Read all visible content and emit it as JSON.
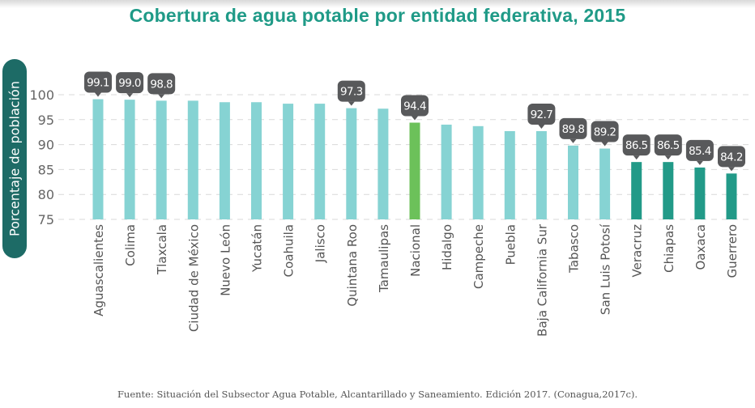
{
  "chart_data": {
    "type": "bar",
    "title": "Cobertura de agua potable por entidad federativa, 2015",
    "xlabel": "",
    "ylabel": "Porcentaje de población",
    "ylim": [
      75,
      100
    ],
    "yticks": [
      75,
      80,
      85,
      90,
      95,
      100
    ],
    "grid": true,
    "categories": [
      "Aguascalientes",
      "Colima",
      "Tlaxcala",
      "Ciudad de México",
      "Nuevo León",
      "Yucatán",
      "Coahuila",
      "Jalisco",
      "Quintana Roo",
      "Tamaulipas",
      "Nacional",
      "Hidalgo",
      "Campeche",
      "Puebla",
      "Baja California Sur",
      "Tabasco",
      "San Luis Potosí",
      "Veracruz",
      "Chiapas",
      "Oaxaca",
      "Guerrero"
    ],
    "values": [
      99.1,
      99.0,
      98.8,
      98.8,
      98.5,
      98.5,
      98.2,
      98.2,
      97.3,
      97.2,
      94.4,
      94.0,
      93.7,
      92.7,
      92.7,
      89.8,
      89.2,
      86.5,
      86.5,
      85.4,
      84.2
    ],
    "data_labels": [
      {
        "category": "Aguascalientes",
        "text": "99.1"
      },
      {
        "category": "Colima",
        "text": "99.0"
      },
      {
        "category": "Tlaxcala",
        "text": "98.8"
      },
      {
        "category": "Quintana Roo",
        "text": "97.3"
      },
      {
        "category": "Nacional",
        "text": "94.4"
      },
      {
        "category": "Baja California Sur",
        "text": "92.7"
      },
      {
        "category": "Tabasco",
        "text": "89.8"
      },
      {
        "category": "San Luis Potosí",
        "text": "89.2"
      },
      {
        "category": "Veracruz",
        "text": "86.5"
      },
      {
        "category": "Chiapas",
        "text": "86.5"
      },
      {
        "category": "Oaxaca",
        "text": "85.4"
      },
      {
        "category": "Guerrero",
        "text": "84.2"
      }
    ],
    "bar_groups": [
      "above",
      "above",
      "above",
      "above",
      "above",
      "above",
      "above",
      "above",
      "above",
      "above",
      "national",
      "above",
      "above",
      "above",
      "above",
      "above",
      "above",
      "below",
      "below",
      "below",
      "below"
    ],
    "colors": {
      "above": "#86d3d3",
      "national": "#6cc15a",
      "below": "#229a88",
      "label_bg": "#58595b",
      "label_text": "#ffffff",
      "grid": "#d9d9d9",
      "tick_text": "#666666",
      "category_text": "#555555"
    },
    "legend": "none"
  },
  "source": "Fuente: Situación del Subsector Agua Potable, Alcantarillado y Saneamiento. Edición 2017. (Conagua,2017c)."
}
